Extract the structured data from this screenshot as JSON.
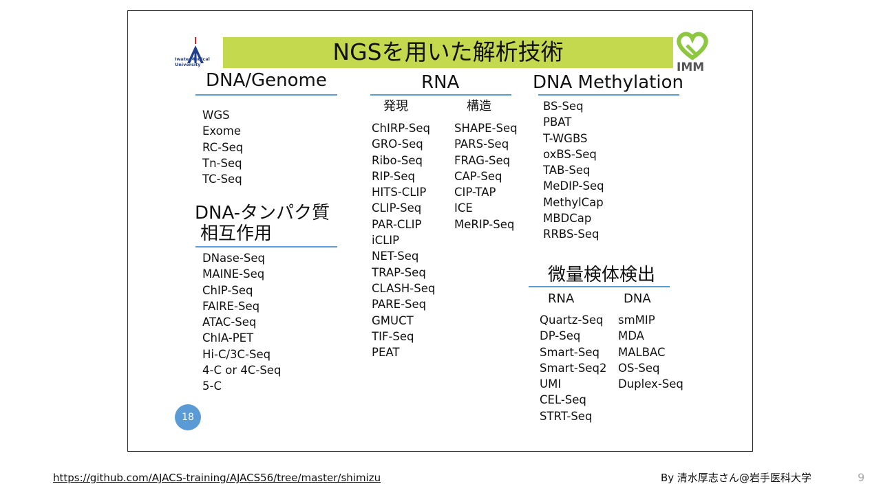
{
  "slide": {
    "title": "NGSを用いた解析技術",
    "logo_left_text": "Iwate Medical University",
    "logo_right_text": "IMM",
    "page_badge": "18",
    "colors": {
      "banner": "#c5d94e",
      "rule": "#5b9bd5",
      "badge": "#5b9bd5",
      "logo_green": "#8dc63f"
    },
    "dna_genome": {
      "heading": "DNA/Genome",
      "items": [
        "WGS",
        "Exome",
        "RC-Seq",
        "Tn-Seq",
        "TC-Seq"
      ]
    },
    "dna_protein": {
      "heading_line1": "DNA-タンパク質",
      "heading_line2": "相互作用",
      "items": [
        "DNase-Seq",
        "MAINE-Seq",
        "ChIP-Seq",
        "FAIRE-Seq",
        "ATAC-Seq",
        "ChIA-PET",
        "Hi-C/3C-Seq",
        "4-C or 4C-Seq",
        "5-C"
      ]
    },
    "rna": {
      "heading": "RNA",
      "expression_label": "発現",
      "structure_label": "構造",
      "expression_items": [
        "ChIRP-Seq",
        "GRO-Seq",
        "Ribo-Seq",
        "RIP-Seq",
        "HITS-CLIP",
        "CLIP-Seq",
        "PAR-CLIP",
        "iCLIP",
        "NET-Seq",
        "TRAP-Seq",
        "CLASH-Seq",
        "PARE-Seq",
        "GMUCT",
        "TIF-Seq",
        "PEAT"
      ],
      "structure_items": [
        "SHAPE-Seq",
        "PARS-Seq",
        "FRAG-Seq",
        "CAP-Seq",
        "CIP-TAP",
        "ICE",
        "MeRIP-Seq"
      ]
    },
    "methylation": {
      "heading": "DNA Methylation",
      "items": [
        "BS-Seq",
        "PBAT",
        "T-WGBS",
        "oxBS-Seq",
        "TAB-Seq",
        "MeDIP-Seq",
        "MethylCap",
        "MBDCap",
        "RRBS-Seq"
      ]
    },
    "micro_sample": {
      "heading": "微量検体検出",
      "rna_label": "RNA",
      "dna_label": "DNA",
      "rna_items": [
        "Quartz-Seq",
        "DP-Seq",
        "Smart-Seq",
        "Smart-Seq2",
        "UMI",
        "CEL-Seq",
        "STRT-Seq"
      ],
      "dna_items": [
        "smMIP",
        "MDA",
        "MALBAC",
        "OS-Seq",
        "Duplex-Seq"
      ]
    }
  },
  "footer": {
    "link_text": "https://github.com/AJACS-training/AJACS56/tree/master/shimizu",
    "credit": "By 清水厚志さん@岩手医科大学",
    "page_number": "9"
  }
}
